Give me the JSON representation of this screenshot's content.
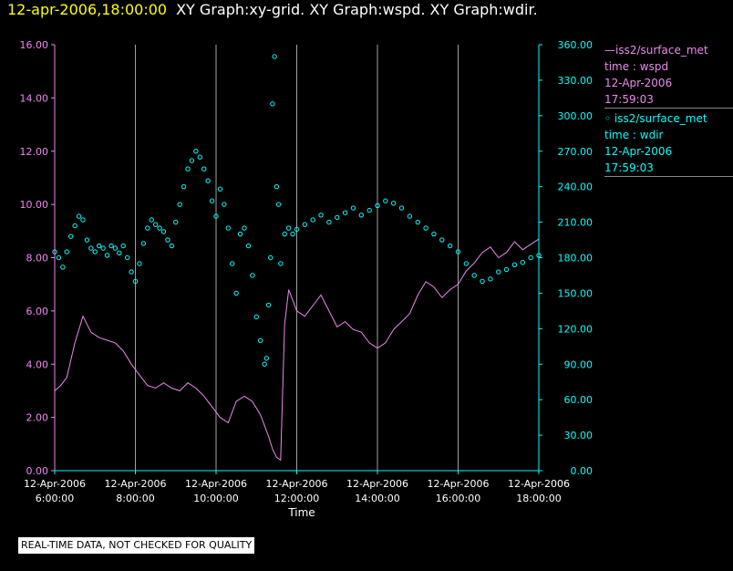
{
  "header": {
    "date_time": "12-apr-2006,18:00:00",
    "graphs": "XY Graph:xy-grid.  XY Graph:wspd.  XY Graph:wdir."
  },
  "legend": {
    "wspd": {
      "name": "—iss2/surface_met",
      "variable": "time : wspd",
      "date": "12-Apr-2006",
      "time": "17:59:03",
      "color": "#ee88ee"
    },
    "wdir": {
      "name": "◦ iss2/surface_met",
      "variable": "time : wdir",
      "date": "12-Apr-2006",
      "time": "17:59:03",
      "color": "#00ffff"
    }
  },
  "footer": {
    "note": "REAL-TIME DATA, NOT CHECKED FOR QUALITY"
  },
  "chart_data": {
    "type": "line",
    "xlabel": "Time",
    "x_ticks": [
      {
        "date": "12-Apr-2006",
        "time": "6:00:00",
        "hour": 6
      },
      {
        "date": "12-Apr-2006",
        "time": "8:00:00",
        "hour": 8
      },
      {
        "date": "12-Apr-2006",
        "time": "10:00:00",
        "hour": 10
      },
      {
        "date": "12-Apr-2006",
        "time": "12:00:00",
        "hour": 12
      },
      {
        "date": "12-Apr-2006",
        "time": "14:00:00",
        "hour": 14
      },
      {
        "date": "12-Apr-2006",
        "time": "16:00:00",
        "hour": 16
      },
      {
        "date": "12-Apr-2006",
        "time": "18:00:00",
        "hour": 18
      }
    ],
    "xlim_hours": [
      6,
      18
    ],
    "y_left": {
      "ylim": [
        0,
        16
      ],
      "ticks": [
        "0.00",
        "2.00",
        "4.00",
        "6.00",
        "8.00",
        "10.00",
        "12.00",
        "14.00",
        "16.00"
      ],
      "color": "#ee88ee"
    },
    "y_right": {
      "ylim": [
        0,
        360
      ],
      "ticks": [
        "0.00",
        "30.00",
        "60.00",
        "90.00",
        "120.00",
        "150.00",
        "180.00",
        "210.00",
        "240.00",
        "270.00",
        "300.00",
        "330.00",
        "360.00"
      ],
      "color": "#00ffff"
    },
    "grid": "vertical",
    "axis_color": "#00ffff",
    "grid_color": "#a0a0a0",
    "series": [
      {
        "key": "wspd",
        "style": "line",
        "axis": "left",
        "color": "#ee88ee",
        "x_hours": [
          6.0,
          6.15,
          6.3,
          6.5,
          6.7,
          6.9,
          7.1,
          7.3,
          7.5,
          7.7,
          7.9,
          8.1,
          8.3,
          8.5,
          8.7,
          8.9,
          9.1,
          9.3,
          9.5,
          9.7,
          9.9,
          10.1,
          10.3,
          10.5,
          10.7,
          10.9,
          11.1,
          11.2,
          11.3,
          11.4,
          11.5,
          11.6,
          11.7,
          11.8,
          12.0,
          12.2,
          12.4,
          12.6,
          12.8,
          13.0,
          13.2,
          13.4,
          13.6,
          13.8,
          14.0,
          14.2,
          14.4,
          14.6,
          14.8,
          15.0,
          15.2,
          15.4,
          15.6,
          15.8,
          16.0,
          16.2,
          16.4,
          16.6,
          16.8,
          17.0,
          17.2,
          17.4,
          17.6,
          17.8,
          18.0
        ],
        "values": [
          3.0,
          3.2,
          3.5,
          4.8,
          5.8,
          5.2,
          5.0,
          4.9,
          4.8,
          4.5,
          4.0,
          3.6,
          3.2,
          3.1,
          3.3,
          3.1,
          3.0,
          3.3,
          3.1,
          2.8,
          2.4,
          2.0,
          1.8,
          2.6,
          2.8,
          2.6,
          2.1,
          1.7,
          1.3,
          0.8,
          0.5,
          0.4,
          5.5,
          6.8,
          6.0,
          5.8,
          6.2,
          6.6,
          6.0,
          5.4,
          5.6,
          5.3,
          5.2,
          4.8,
          4.6,
          4.8,
          5.3,
          5.6,
          5.9,
          6.6,
          7.1,
          6.9,
          6.5,
          6.8,
          7.0,
          7.5,
          7.8,
          8.2,
          8.4,
          8.0,
          8.2,
          8.6,
          8.3,
          8.5,
          8.7
        ]
      },
      {
        "key": "wdir",
        "style": "scatter",
        "axis": "right",
        "color": "#00ffff",
        "x_hours": [
          6.0,
          6.1,
          6.2,
          6.3,
          6.4,
          6.5,
          6.6,
          6.7,
          6.8,
          6.9,
          7.0,
          7.1,
          7.2,
          7.3,
          7.4,
          7.5,
          7.6,
          7.7,
          7.8,
          7.9,
          8.0,
          8.1,
          8.2,
          8.3,
          8.4,
          8.5,
          8.6,
          8.7,
          8.8,
          8.9,
          9.0,
          9.1,
          9.2,
          9.3,
          9.4,
          9.5,
          9.6,
          9.7,
          9.8,
          9.9,
          10.0,
          10.1,
          10.2,
          10.3,
          10.4,
          10.5,
          10.6,
          10.7,
          10.8,
          10.9,
          11.0,
          11.1,
          11.2,
          11.25,
          11.3,
          11.35,
          11.4,
          11.45,
          11.5,
          11.55,
          11.6,
          11.7,
          11.8,
          11.9,
          12.0,
          12.2,
          12.4,
          12.6,
          12.8,
          13.0,
          13.2,
          13.4,
          13.6,
          13.8,
          14.0,
          14.2,
          14.4,
          14.6,
          14.8,
          15.0,
          15.2,
          15.4,
          15.6,
          15.8,
          16.0,
          16.2,
          16.4,
          16.6,
          16.8,
          17.0,
          17.2,
          17.4,
          17.6,
          17.8,
          18.0
        ],
        "values": [
          185,
          180,
          172,
          185,
          198,
          207,
          215,
          212,
          195,
          188,
          185,
          190,
          188,
          182,
          190,
          188,
          184,
          190,
          180,
          168,
          160,
          175,
          192,
          205,
          212,
          208,
          205,
          202,
          195,
          190,
          210,
          225,
          240,
          255,
          262,
          270,
          265,
          255,
          245,
          228,
          215,
          238,
          225,
          205,
          175,
          150,
          200,
          205,
          190,
          165,
          130,
          110,
          90,
          95,
          140,
          180,
          310,
          350,
          240,
          225,
          175,
          200,
          205,
          200,
          204,
          208,
          212,
          216,
          210,
          214,
          218,
          222,
          216,
          220,
          224,
          228,
          226,
          222,
          215,
          210,
          205,
          200,
          195,
          190,
          185,
          175,
          165,
          160,
          162,
          168,
          170,
          174,
          176,
          180,
          182
        ]
      }
    ]
  }
}
